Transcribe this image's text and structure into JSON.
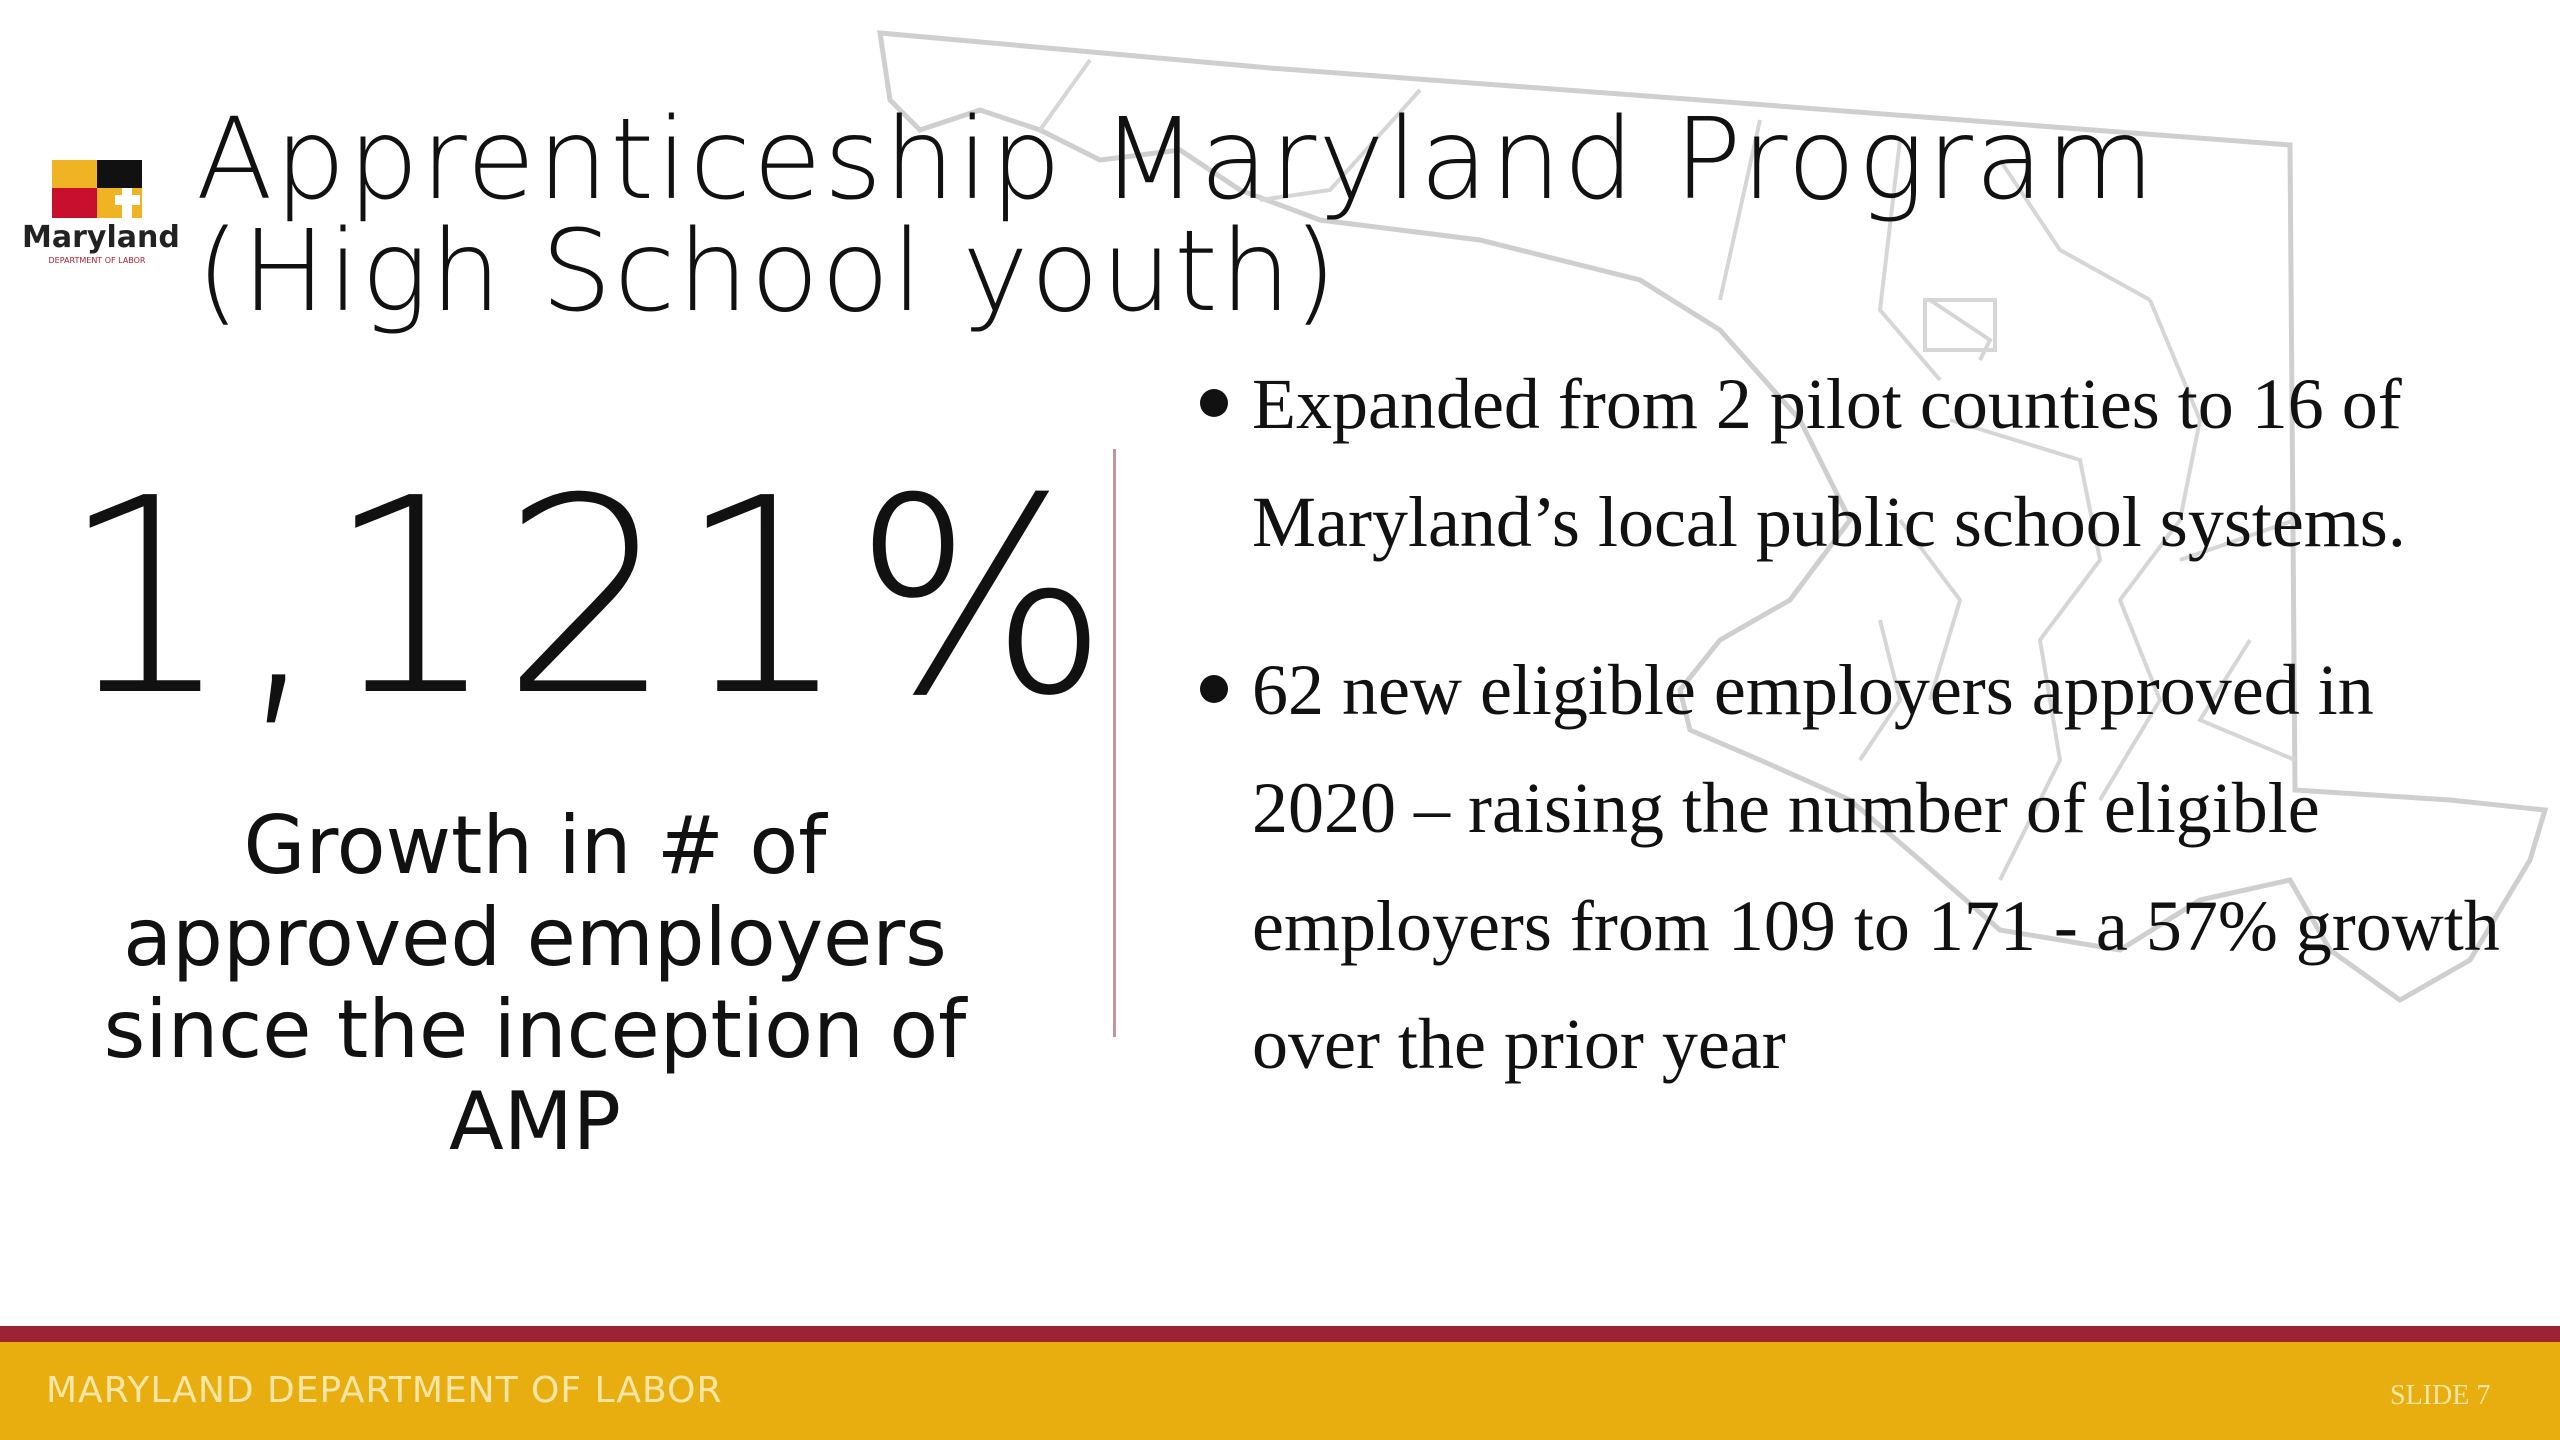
{
  "logo": {
    "name": "Maryland",
    "subtitle": "DEPARTMENT OF LABOR"
  },
  "header": {
    "title_lines": [
      "Apprenticeship Maryland Program",
      "(High School youth)"
    ]
  },
  "stat": {
    "value": "1,121%",
    "caption": "Growth in # of approved employers since the inception of AMP"
  },
  "bullets": [
    "Expanded from 2 pilot counties to 16 of Maryland’s local public school systems.",
    "62 new eligible employers approved in 2020 – raising the number of eligible employers from 109 to 171 - a 57% growth over the prior year"
  ],
  "footer": {
    "organization": "MARYLAND DEPARTMENT OF LABOR",
    "slide": "SLIDE 7"
  }
}
